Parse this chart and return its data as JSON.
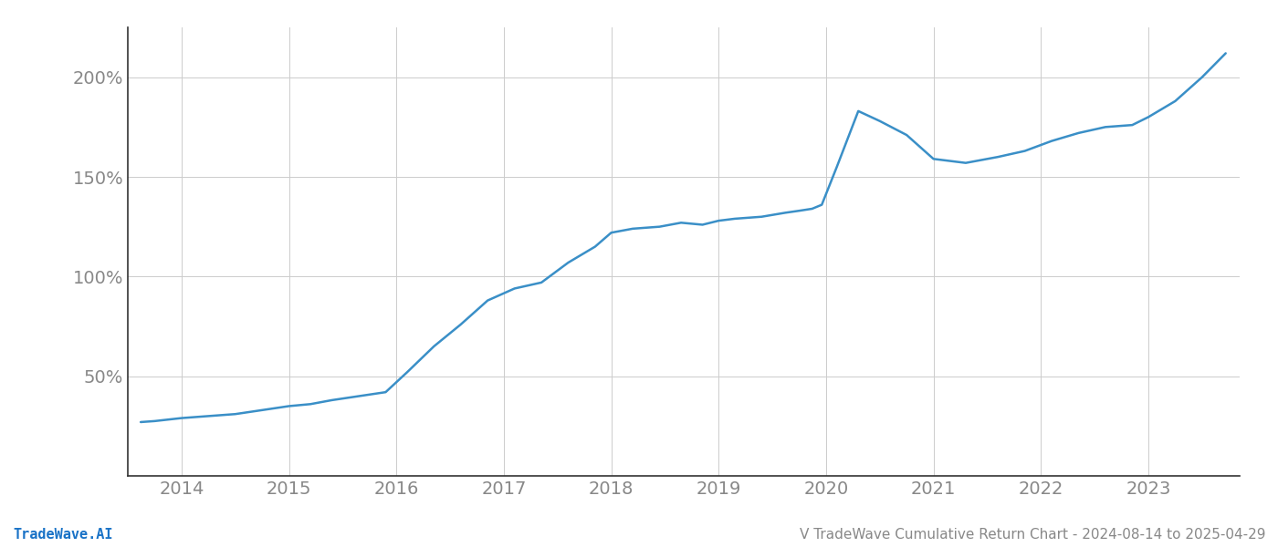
{
  "title": "",
  "footer_left": "TradeWave.AI",
  "footer_right": "V TradeWave Cumulative Return Chart - 2024-08-14 to 2025-04-29",
  "line_color": "#3a8fc7",
  "background_color": "#ffffff",
  "grid_color": "#cccccc",
  "x_years": [
    2014,
    2015,
    2016,
    2017,
    2018,
    2019,
    2020,
    2021,
    2022,
    2023
  ],
  "x_values": [
    2013.62,
    2013.75,
    2014.0,
    2014.25,
    2014.5,
    2014.75,
    2015.0,
    2015.2,
    2015.4,
    2015.65,
    2015.9,
    2016.1,
    2016.35,
    2016.6,
    2016.85,
    2017.1,
    2017.35,
    2017.6,
    2017.85,
    2018.0,
    2018.2,
    2018.45,
    2018.65,
    2018.85,
    2019.0,
    2019.15,
    2019.4,
    2019.62,
    2019.75,
    2019.87,
    2019.96,
    2020.1,
    2020.3,
    2020.5,
    2020.75,
    2021.0,
    2021.3,
    2021.6,
    2021.85,
    2022.1,
    2022.35,
    2022.6,
    2022.85,
    2023.0,
    2023.25,
    2023.5,
    2023.72
  ],
  "y_values": [
    27,
    27.5,
    29,
    30,
    31,
    33,
    35,
    36,
    38,
    40,
    42,
    52,
    65,
    76,
    88,
    94,
    97,
    107,
    115,
    122,
    124,
    125,
    127,
    126,
    128,
    129,
    130,
    132,
    133,
    134,
    136,
    155,
    183,
    178,
    171,
    159,
    157,
    160,
    163,
    168,
    172,
    175,
    176,
    180,
    188,
    200,
    212
  ],
  "yticks": [
    50,
    100,
    150,
    200
  ],
  "ytick_labels": [
    "50%",
    "100%",
    "150%",
    "200%"
  ],
  "ylim": [
    0,
    225
  ],
  "xlim": [
    2013.5,
    2023.85
  ],
  "tick_label_color": "#888888",
  "footer_color_left": "#1a73c7",
  "footer_color_right": "#888888",
  "footer_fontsize": 11,
  "tick_fontsize": 14,
  "line_width": 1.8,
  "spine_color": "#333333"
}
